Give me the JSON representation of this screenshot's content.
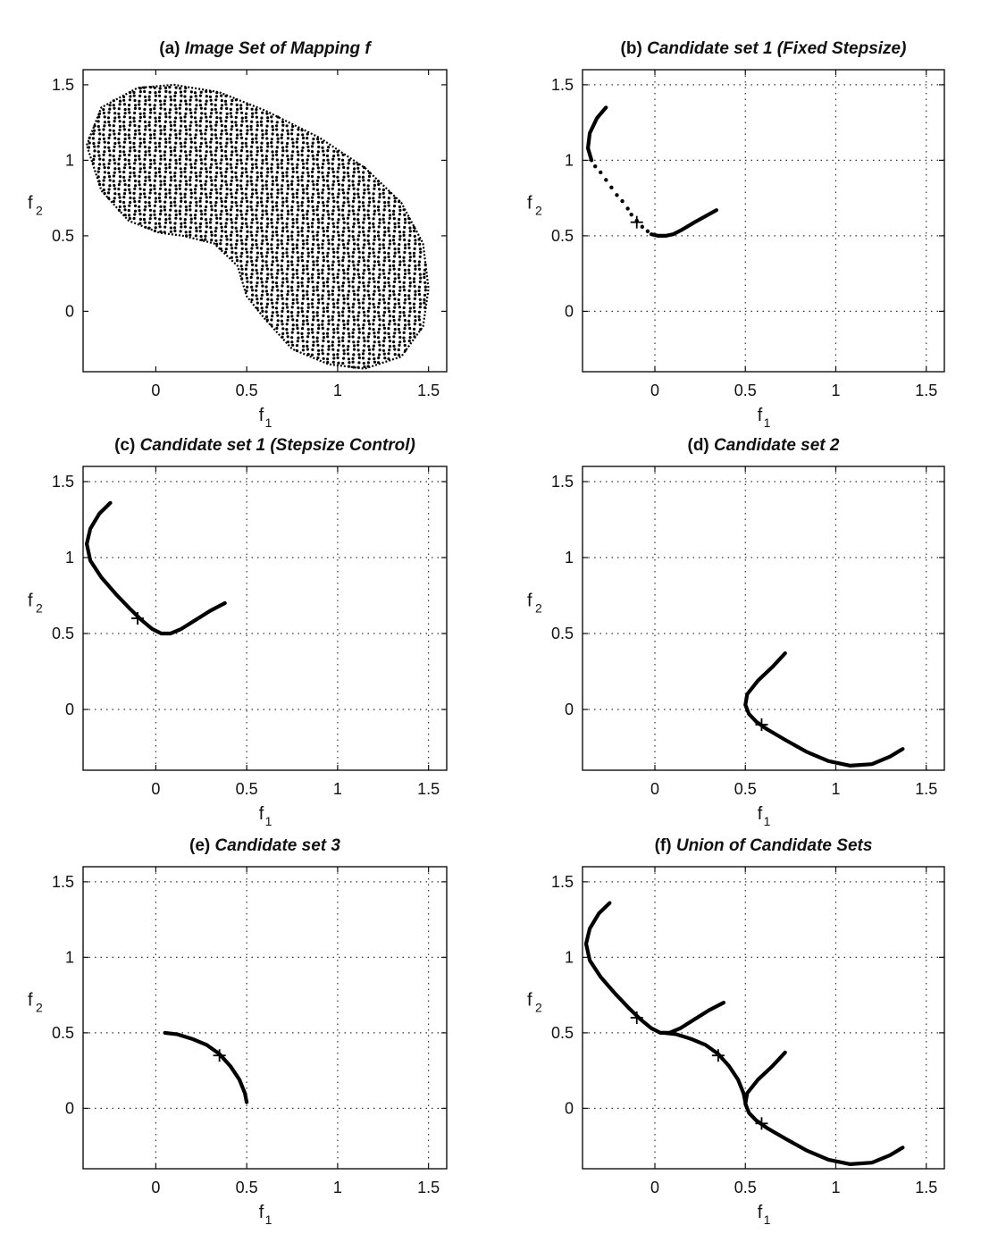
{
  "chart_data": [
    {
      "id": "a",
      "type": "scatter",
      "title_prefix": "(a)",
      "title": "Image Set of Mapping f",
      "xlabel": "f",
      "xlabel_sub": "1",
      "ylabel": "f",
      "ylabel_sub": "2",
      "xlim": [
        -0.4,
        1.6
      ],
      "ylim": [
        -0.4,
        1.6
      ],
      "xticks": [
        0,
        0.5,
        1,
        1.5
      ],
      "yticks": [
        0,
        0.5,
        1,
        1.5
      ],
      "xtick_labels": [
        "0",
        "0.5",
        "1",
        "1.5"
      ],
      "ytick_labels": [
        "0",
        "0.5",
        "1",
        "1.5"
      ],
      "grid": false,
      "series": [
        {
          "kind": "dots",
          "description_points": "dense dotted image of the two-parameter mapping; bounded region",
          "outer_boundary": [
            [
              -0.38,
              1.1
            ],
            [
              -0.3,
              1.35
            ],
            [
              -0.1,
              1.48
            ],
            [
              0.1,
              1.5
            ],
            [
              0.35,
              1.45
            ],
            [
              0.6,
              1.33
            ],
            [
              0.9,
              1.15
            ],
            [
              1.15,
              0.95
            ],
            [
              1.35,
              0.72
            ],
            [
              1.47,
              0.45
            ],
            [
              1.5,
              0.15
            ],
            [
              1.47,
              -0.1
            ],
            [
              1.35,
              -0.3
            ],
            [
              1.15,
              -0.38
            ],
            [
              0.95,
              -0.35
            ],
            [
              0.75,
              -0.25
            ],
            [
              0.6,
              -0.05
            ],
            [
              0.5,
              0.1
            ],
            [
              0.45,
              0.3
            ],
            [
              0.32,
              0.45
            ],
            [
              0.15,
              0.5
            ],
            [
              0.02,
              0.52
            ],
            [
              -0.15,
              0.6
            ],
            [
              -0.3,
              0.8
            ],
            [
              -0.38,
              1.1
            ]
          ]
        }
      ]
    },
    {
      "id": "b",
      "type": "line",
      "title_prefix": "(b)",
      "title": "Candidate set 1 (Fixed Stepsize)",
      "xlabel": "f",
      "xlabel_sub": "1",
      "ylabel": "f",
      "ylabel_sub": "2",
      "xlim": [
        -0.4,
        1.6
      ],
      "ylim": [
        -0.4,
        1.6
      ],
      "xticks": [
        0,
        0.5,
        1,
        1.5
      ],
      "yticks": [
        0,
        0.5,
        1,
        1.5
      ],
      "xtick_labels": [
        "0",
        "0.5",
        "1",
        "1.5"
      ],
      "ytick_labels": [
        "0",
        "0.5",
        "1",
        "1.5"
      ],
      "grid": true,
      "series": [
        {
          "kind": "curve",
          "points": [
            [
              -0.27,
              1.35
            ],
            [
              -0.32,
              1.28
            ],
            [
              -0.36,
              1.18
            ],
            [
              -0.37,
              1.08
            ],
            [
              -0.35,
              1.0
            ]
          ]
        },
        {
          "kind": "dots",
          "points": [
            [
              -0.33,
              0.96
            ],
            [
              -0.3,
              0.92
            ],
            [
              -0.27,
              0.87
            ],
            [
              -0.24,
              0.82
            ],
            [
              -0.21,
              0.77
            ],
            [
              -0.18,
              0.73
            ],
            [
              -0.15,
              0.68
            ],
            [
              -0.13,
              0.64
            ],
            [
              -0.1,
              0.6
            ],
            [
              -0.07,
              0.56
            ],
            [
              -0.04,
              0.53
            ]
          ]
        },
        {
          "kind": "curve",
          "points": [
            [
              -0.02,
              0.51
            ],
            [
              0.02,
              0.5
            ],
            [
              0.06,
              0.5
            ],
            [
              0.1,
              0.51
            ],
            [
              0.15,
              0.54
            ],
            [
              0.22,
              0.59
            ],
            [
              0.28,
              0.63
            ],
            [
              0.34,
              0.67
            ]
          ]
        }
      ],
      "markers": [
        [
          -0.1,
          0.59
        ]
      ]
    },
    {
      "id": "c",
      "type": "line",
      "title_prefix": "(c)",
      "title": "Candidate set 1 (Stepsize Control)",
      "xlabel": "f",
      "xlabel_sub": "1",
      "ylabel": "f",
      "ylabel_sub": "2",
      "xlim": [
        -0.4,
        1.6
      ],
      "ylim": [
        -0.4,
        1.6
      ],
      "xticks": [
        0,
        0.5,
        1,
        1.5
      ],
      "yticks": [
        0,
        0.5,
        1,
        1.5
      ],
      "xtick_labels": [
        "0",
        "0.5",
        "1",
        "1.5"
      ],
      "ytick_labels": [
        "0",
        "0.5",
        "1",
        "1.5"
      ],
      "grid": true,
      "series": [
        {
          "kind": "curve",
          "points": [
            [
              -0.25,
              1.36
            ],
            [
              -0.31,
              1.29
            ],
            [
              -0.36,
              1.19
            ],
            [
              -0.38,
              1.09
            ],
            [
              -0.36,
              0.98
            ],
            [
              -0.3,
              0.87
            ],
            [
              -0.22,
              0.76
            ],
            [
              -0.14,
              0.66
            ],
            [
              -0.08,
              0.59
            ],
            [
              -0.02,
              0.53
            ],
            [
              0.03,
              0.5
            ],
            [
              0.08,
              0.5
            ],
            [
              0.14,
              0.53
            ],
            [
              0.22,
              0.59
            ],
            [
              0.3,
              0.65
            ],
            [
              0.38,
              0.7
            ]
          ]
        }
      ],
      "markers": [
        [
          -0.1,
          0.6
        ]
      ]
    },
    {
      "id": "d",
      "type": "line",
      "title_prefix": "(d)",
      "title": "Candidate set 2",
      "xlabel": "f",
      "xlabel_sub": "1",
      "ylabel": "f",
      "ylabel_sub": "2",
      "xlim": [
        -0.4,
        1.6
      ],
      "ylim": [
        -0.4,
        1.6
      ],
      "xticks": [
        0,
        0.5,
        1,
        1.5
      ],
      "yticks": [
        0,
        0.5,
        1,
        1.5
      ],
      "xtick_labels": [
        "0",
        "0.5",
        "1",
        "1.5"
      ],
      "ytick_labels": [
        "0",
        "0.5",
        "1",
        "1.5"
      ],
      "grid": true,
      "series": [
        {
          "kind": "curve",
          "points": [
            [
              0.72,
              0.37
            ],
            [
              0.65,
              0.28
            ],
            [
              0.57,
              0.19
            ],
            [
              0.51,
              0.1
            ],
            [
              0.5,
              0.03
            ],
            [
              0.52,
              -0.03
            ],
            [
              0.56,
              -0.08
            ],
            [
              0.62,
              -0.13
            ],
            [
              0.72,
              -0.2
            ],
            [
              0.84,
              -0.28
            ],
            [
              0.96,
              -0.34
            ],
            [
              1.08,
              -0.37
            ],
            [
              1.2,
              -0.36
            ],
            [
              1.3,
              -0.31
            ],
            [
              1.37,
              -0.26
            ]
          ]
        }
      ],
      "markers": [
        [
          0.59,
          -0.1
        ]
      ]
    },
    {
      "id": "e",
      "type": "line",
      "title_prefix": "(e)",
      "title": "Candidate set 3",
      "xlabel": "f",
      "xlabel_sub": "1",
      "ylabel": "f",
      "ylabel_sub": "2",
      "xlim": [
        -0.4,
        1.6
      ],
      "ylim": [
        -0.4,
        1.6
      ],
      "xticks": [
        0,
        0.5,
        1,
        1.5
      ],
      "yticks": [
        0,
        0.5,
        1,
        1.5
      ],
      "xtick_labels": [
        "0",
        "0.5",
        "1",
        "1.5"
      ],
      "ytick_labels": [
        "0",
        "0.5",
        "1",
        "1.5"
      ],
      "grid": true,
      "series": [
        {
          "kind": "curve",
          "points": [
            [
              0.05,
              0.5
            ],
            [
              0.12,
              0.49
            ],
            [
              0.2,
              0.46
            ],
            [
              0.28,
              0.42
            ],
            [
              0.35,
              0.36
            ],
            [
              0.41,
              0.28
            ],
            [
              0.46,
              0.19
            ],
            [
              0.49,
              0.1
            ],
            [
              0.5,
              0.04
            ]
          ]
        }
      ],
      "markers": [
        [
          0.35,
          0.35
        ]
      ]
    },
    {
      "id": "f",
      "type": "line",
      "title_prefix": "(f)",
      "title": "Union of Candidate Sets",
      "xlabel": "f",
      "xlabel_sub": "1",
      "ylabel": "f",
      "ylabel_sub": "2",
      "xlim": [
        -0.4,
        1.6
      ],
      "ylim": [
        -0.4,
        1.6
      ],
      "xticks": [
        0,
        0.5,
        1,
        1.5
      ],
      "yticks": [
        0,
        0.5,
        1,
        1.5
      ],
      "xtick_labels": [
        "0",
        "0.5",
        "1",
        "1.5"
      ],
      "ytick_labels": [
        "0",
        "0.5",
        "1",
        "1.5"
      ],
      "grid": true,
      "series": [
        {
          "kind": "curve",
          "points": [
            [
              -0.25,
              1.36
            ],
            [
              -0.31,
              1.29
            ],
            [
              -0.36,
              1.19
            ],
            [
              -0.38,
              1.09
            ],
            [
              -0.36,
              0.98
            ],
            [
              -0.3,
              0.87
            ],
            [
              -0.22,
              0.76
            ],
            [
              -0.14,
              0.66
            ],
            [
              -0.08,
              0.59
            ],
            [
              -0.02,
              0.53
            ],
            [
              0.03,
              0.5
            ],
            [
              0.08,
              0.5
            ],
            [
              0.14,
              0.53
            ],
            [
              0.22,
              0.59
            ],
            [
              0.3,
              0.65
            ],
            [
              0.38,
              0.7
            ]
          ]
        },
        {
          "kind": "curve",
          "points": [
            [
              0.05,
              0.5
            ],
            [
              0.12,
              0.49
            ],
            [
              0.2,
              0.46
            ],
            [
              0.28,
              0.42
            ],
            [
              0.35,
              0.36
            ],
            [
              0.41,
              0.28
            ],
            [
              0.46,
              0.19
            ],
            [
              0.49,
              0.1
            ],
            [
              0.5,
              0.04
            ]
          ]
        },
        {
          "kind": "curve",
          "points": [
            [
              0.72,
              0.37
            ],
            [
              0.65,
              0.28
            ],
            [
              0.57,
              0.19
            ],
            [
              0.51,
              0.1
            ],
            [
              0.5,
              0.03
            ],
            [
              0.52,
              -0.03
            ],
            [
              0.56,
              -0.08
            ],
            [
              0.62,
              -0.13
            ],
            [
              0.72,
              -0.2
            ],
            [
              0.84,
              -0.28
            ],
            [
              0.96,
              -0.34
            ],
            [
              1.08,
              -0.37
            ],
            [
              1.2,
              -0.36
            ],
            [
              1.3,
              -0.31
            ],
            [
              1.37,
              -0.26
            ]
          ]
        }
      ],
      "markers": [
        [
          -0.1,
          0.6
        ],
        [
          0.35,
          0.35
        ],
        [
          0.59,
          -0.1
        ]
      ]
    }
  ]
}
